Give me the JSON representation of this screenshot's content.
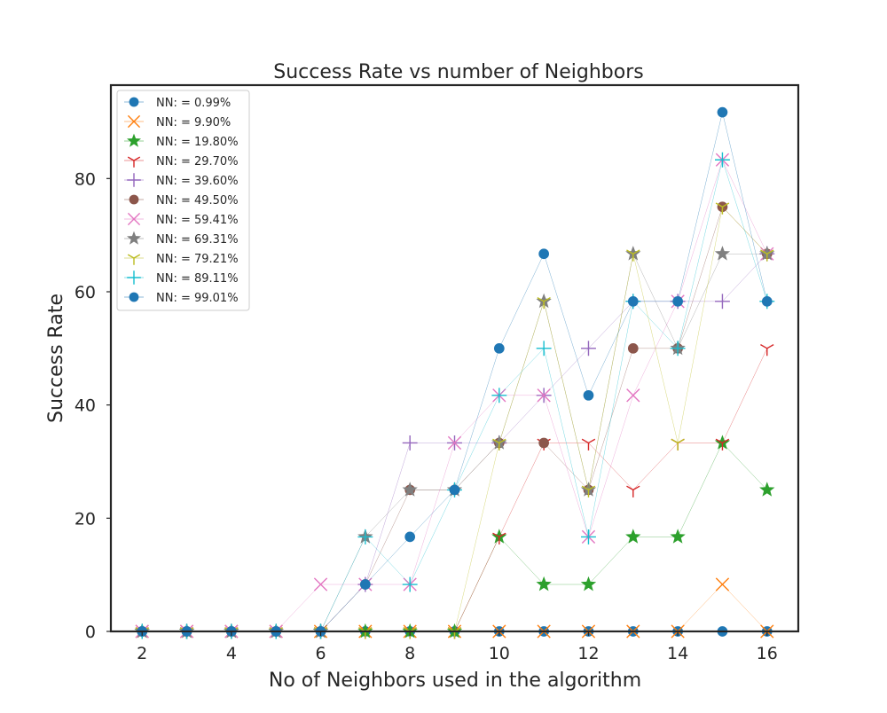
{
  "chart_data": {
    "type": "line",
    "title": "Success Rate vs number of Neighbors",
    "xlabel": "No of Neighbors used in the algorithm",
    "ylabel": "Success Rate",
    "xlim": [
      1.3,
      16.7
    ],
    "ylim": [
      0,
      96.5
    ],
    "x_ticks": [
      2,
      4,
      6,
      8,
      10,
      12,
      14,
      16
    ],
    "y_ticks": [
      0,
      20,
      40,
      60,
      80
    ],
    "grid": false,
    "legend_position": "top-left",
    "x": [
      2,
      3,
      4,
      5,
      6,
      7,
      8,
      9,
      10,
      11,
      12,
      13,
      14,
      15,
      16
    ],
    "series": [
      {
        "name": "NN: $=0.99\\%$",
        "color": "#1f77b4",
        "marker": "circle",
        "values": [
          0,
          0,
          0,
          0,
          0,
          0,
          0,
          0,
          0,
          0,
          0,
          0,
          0,
          0,
          0
        ]
      },
      {
        "name": "NN: $=9.90\\%$",
        "color": "#ff7f0e",
        "marker": "x",
        "values": [
          0,
          0,
          0,
          0,
          0,
          0,
          0,
          0,
          0,
          0,
          0,
          0,
          0,
          8.3,
          0
        ]
      },
      {
        "name": "NN: $=19.80\\%$",
        "color": "#2ca02c",
        "marker": "star",
        "values": [
          0,
          0,
          0,
          0,
          0,
          0,
          0,
          0,
          16.7,
          8.3,
          8.3,
          16.7,
          16.7,
          33.3,
          25
        ]
      },
      {
        "name": "NN: $=29.70\\%$",
        "color": "#d62728",
        "marker": "tri",
        "values": [
          0,
          0,
          0,
          0,
          0,
          0,
          0,
          0,
          16.7,
          33.3,
          33.3,
          25,
          33.3,
          33.3,
          50
        ]
      },
      {
        "name": "NN: $=39.60\\%$",
        "color": "#9467bd",
        "marker": "plus",
        "values": [
          0,
          0,
          0,
          0,
          0,
          8.3,
          33.3,
          33.3,
          33.3,
          41.7,
          50,
          58.3,
          58.3,
          58.3,
          66.7
        ]
      },
      {
        "name": "NN: $=49.50\\%$",
        "color": "#8c564b",
        "marker": "circle",
        "values": [
          0,
          0,
          0,
          0,
          0,
          8.3,
          25,
          25,
          33.3,
          33.3,
          25,
          50,
          50,
          75,
          66.7
        ]
      },
      {
        "name": "NN: $=59.41\\%$",
        "color": "#e377c2",
        "marker": "x",
        "values": [
          0,
          0,
          0,
          0,
          8.3,
          8.3,
          8.3,
          33.3,
          41.7,
          41.7,
          16.7,
          41.7,
          58.3,
          83.3,
          66.7
        ]
      },
      {
        "name": "NN: $=69.31\\%$",
        "color": "#7f7f7f",
        "marker": "star",
        "values": [
          0,
          0,
          0,
          0,
          0,
          16.7,
          25,
          25,
          33.3,
          58.3,
          25,
          66.7,
          50,
          66.7,
          66.7
        ]
      },
      {
        "name": "NN: $=79.21\\%$",
        "color": "#bcbd22",
        "marker": "tri",
        "values": [
          0,
          0,
          0,
          0,
          0,
          0,
          0,
          0,
          33.3,
          58.3,
          25,
          66.7,
          33.3,
          75,
          66.7
        ]
      },
      {
        "name": "NN: $=89.11\\%$",
        "color": "#17becf",
        "marker": "plus",
        "values": [
          0,
          0,
          0,
          0,
          0,
          16.7,
          8.3,
          25,
          41.7,
          50,
          16.7,
          58.3,
          50,
          83.3,
          58.3
        ]
      },
      {
        "name": "NN: $=99.01\\%$",
        "color": "#1f77b4",
        "marker": "circle",
        "values": [
          0,
          0,
          0,
          0,
          0,
          8.3,
          16.7,
          25,
          50,
          66.7,
          41.7,
          58.3,
          58.3,
          91.7,
          58.3
        ]
      }
    ]
  }
}
